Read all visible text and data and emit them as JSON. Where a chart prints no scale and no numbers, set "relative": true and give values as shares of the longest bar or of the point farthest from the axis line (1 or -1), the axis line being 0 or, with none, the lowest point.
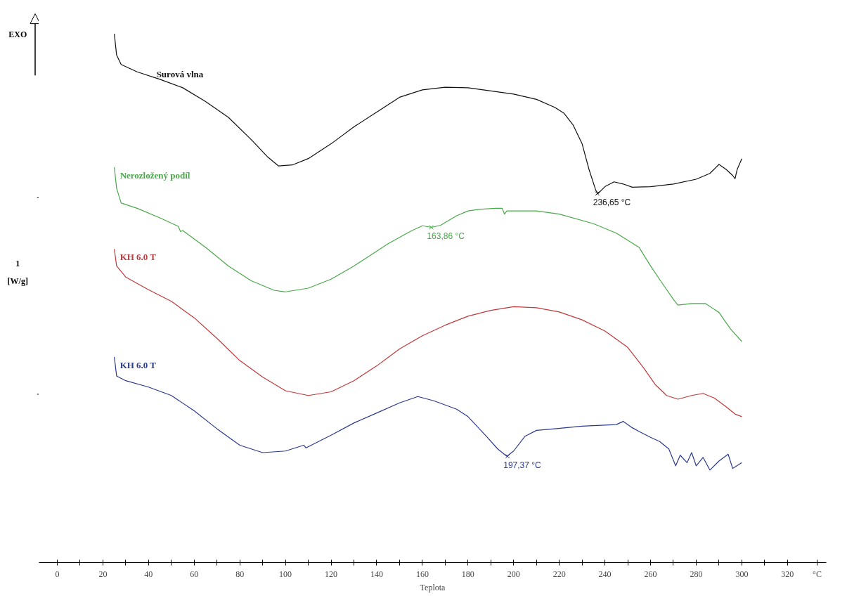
{
  "chart_data": {
    "type": "line",
    "relative": true,
    "xlabel": "Teplota",
    "xlim": [
      -8,
      337
    ],
    "grid": false,
    "marker": "none",
    "line_style": "solid",
    "xticks": [
      0,
      {
        "value": 10,
        "label": null
      },
      20,
      {
        "value": 30,
        "label": null
      },
      40,
      {
        "value": 50,
        "label": null
      },
      60,
      {
        "value": 70,
        "label": null
      },
      80,
      {
        "value": 90,
        "label": null
      },
      100,
      {
        "value": 110,
        "label": null
      },
      120,
      {
        "value": 130,
        "label": null
      },
      140,
      {
        "value": 150,
        "label": null
      },
      160,
      {
        "value": 170,
        "label": null
      },
      180,
      {
        "value": 190,
        "label": null
      },
      200,
      {
        "value": 210,
        "label": null
      },
      220,
      {
        "value": 230,
        "label": null
      },
      240,
      {
        "value": 250,
        "label": null
      },
      260,
      {
        "value": 270,
        "label": null
      },
      280,
      {
        "value": 290,
        "label": null
      },
      300,
      {
        "value": 310,
        "label": null
      },
      320,
      {
        "value": 333,
        "label": "°C"
      }
    ],
    "series": [
      {
        "name": "Surová vlna",
        "color": "#111111",
        "x": [
          25,
          26,
          28,
          35,
          45,
          55,
          65,
          75,
          85,
          92,
          97,
          103,
          110,
          120,
          130,
          140,
          150,
          160,
          170,
          180,
          190,
          200,
          210,
          218,
          222,
          226,
          230,
          233,
          236,
          237,
          240,
          244,
          248,
          252,
          260,
          270,
          280,
          286,
          290,
          293,
          296,
          297,
          298,
          300
        ],
        "values": [
          1.0,
          0.96,
          0.942,
          0.928,
          0.914,
          0.898,
          0.872,
          0.842,
          0.8,
          0.768,
          0.75,
          0.752,
          0.764,
          0.792,
          0.824,
          0.852,
          0.88,
          0.894,
          0.899,
          0.898,
          0.892,
          0.886,
          0.876,
          0.861,
          0.85,
          0.828,
          0.792,
          0.744,
          0.704,
          0.698,
          0.711,
          0.72,
          0.716,
          0.71,
          0.711,
          0.716,
          0.725,
          0.736,
          0.753,
          0.744,
          0.732,
          0.726,
          0.744,
          0.764
        ]
      },
      {
        "name": "Nerozložený podíl",
        "color": "#4aa84a",
        "x": [
          25,
          26,
          28,
          35,
          45,
          53,
          54,
          55,
          65,
          75,
          85,
          95,
          100,
          110,
          120,
          130,
          135,
          145,
          155,
          160,
          164,
          168,
          175,
          180,
          185,
          192,
          195,
          196,
          197,
          210,
          220,
          235,
          245,
          255,
          260,
          265,
          270,
          272,
          278,
          284,
          290,
          295,
          300
        ],
        "values": [
          0.748,
          0.708,
          0.68,
          0.67,
          0.652,
          0.636,
          0.626,
          0.628,
          0.596,
          0.561,
          0.533,
          0.515,
          0.512,
          0.519,
          0.536,
          0.561,
          0.575,
          0.603,
          0.627,
          0.637,
          0.634,
          0.638,
          0.656,
          0.665,
          0.668,
          0.67,
          0.67,
          0.659,
          0.665,
          0.665,
          0.659,
          0.641,
          0.623,
          0.596,
          0.561,
          0.529,
          0.498,
          0.487,
          0.49,
          0.49,
          0.473,
          0.442,
          0.418
        ]
      },
      {
        "name": "KH 6.0 T",
        "color": "#c0393b",
        "x": [
          25,
          26,
          30,
          40,
          50,
          60,
          70,
          80,
          90,
          100,
          110,
          120,
          130,
          140,
          150,
          160,
          170,
          180,
          190,
          200,
          210,
          220,
          230,
          240,
          250,
          257,
          262,
          267,
          272,
          278,
          283,
          288,
          293,
          297,
          300
        ],
        "values": [
          0.593,
          0.561,
          0.54,
          0.516,
          0.494,
          0.463,
          0.424,
          0.382,
          0.351,
          0.325,
          0.316,
          0.323,
          0.344,
          0.372,
          0.404,
          0.429,
          0.449,
          0.466,
          0.477,
          0.484,
          0.482,
          0.474,
          0.459,
          0.438,
          0.407,
          0.368,
          0.337,
          0.316,
          0.309,
          0.316,
          0.32,
          0.311,
          0.295,
          0.281,
          0.276
        ]
      },
      {
        "name": "KH 6.0 T",
        "color": "#2b3a8c",
        "x": [
          25,
          26,
          30,
          40,
          50,
          60,
          70,
          80,
          90,
          100,
          108,
          109,
          120,
          130,
          140,
          150,
          158,
          165,
          175,
          180,
          188,
          193,
          197,
          200,
          205,
          210,
          218,
          230,
          245,
          248,
          252,
          255,
          260,
          264,
          268,
          271,
          273,
          276,
          278,
          280,
          283,
          286,
          290,
          294,
          296,
          300
        ],
        "values": [
          0.389,
          0.353,
          0.344,
          0.332,
          0.316,
          0.287,
          0.253,
          0.222,
          0.208,
          0.211,
          0.222,
          0.217,
          0.241,
          0.264,
          0.283,
          0.302,
          0.314,
          0.306,
          0.29,
          0.276,
          0.239,
          0.215,
          0.201,
          0.211,
          0.239,
          0.25,
          0.253,
          0.258,
          0.261,
          0.267,
          0.255,
          0.248,
          0.237,
          0.229,
          0.215,
          0.183,
          0.203,
          0.189,
          0.208,
          0.183,
          0.199,
          0.175,
          0.192,
          0.205,
          0.178,
          0.189
        ]
      }
    ],
    "annotations": [
      {
        "text": "236,65 °C",
        "x": 236.65,
        "y": 0.698
      },
      {
        "text": "163,86 °C",
        "x": 163.86,
        "y": 0.634
      },
      {
        "text": "197,37 °C",
        "x": 197.37,
        "y": 0.201
      },
      "EXO",
      "1",
      "[W/g]"
    ]
  }
}
